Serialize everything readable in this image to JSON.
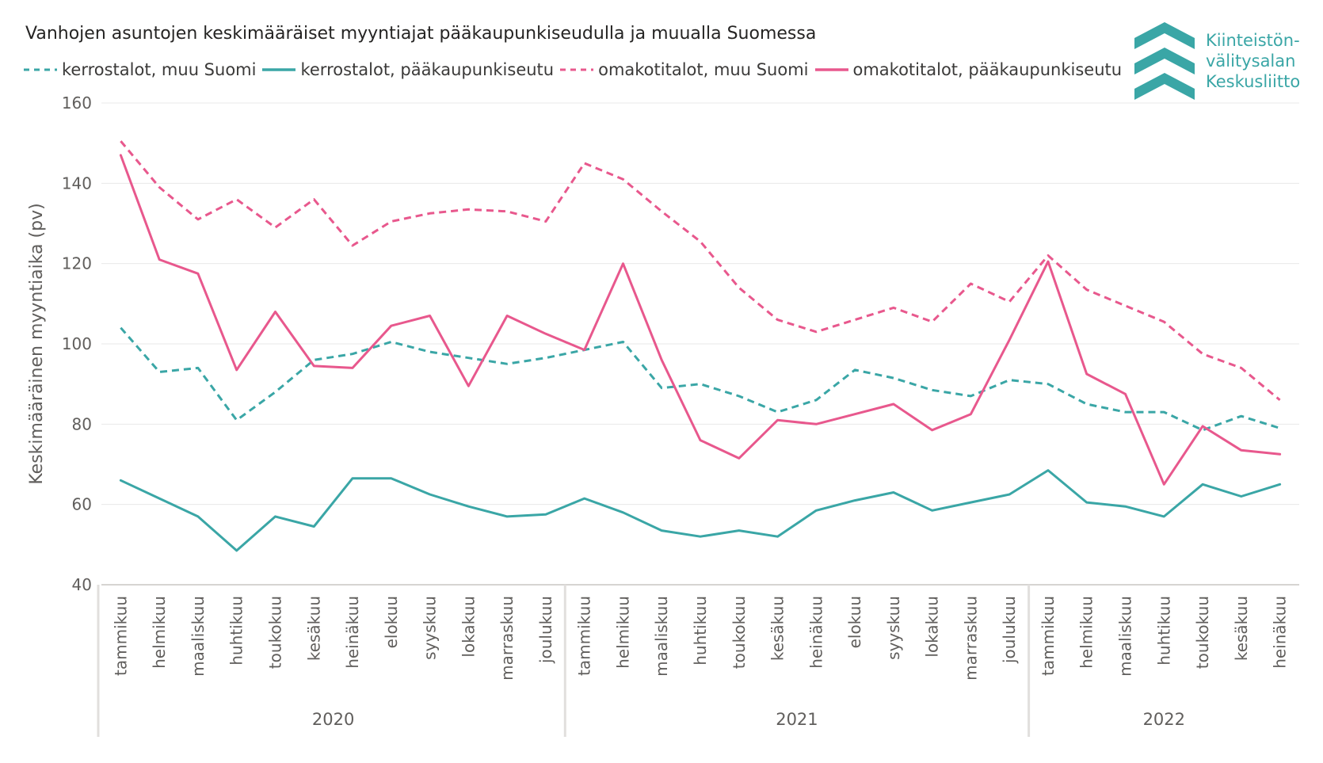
{
  "title": "Vanhojen asuntojen keskimääräiset myyntiajat pääkaupunkiseudulla ja muualla Suomessa",
  "logo": {
    "lines": [
      "Kiinteistön-",
      "välitysalan",
      "Keskusliitto"
    ],
    "color": "#3aa6a6"
  },
  "chart_data": {
    "type": "line",
    "ylabel": "Keskimääräinen myyntiaika (pv)",
    "xlabel": "",
    "ylim": [
      40,
      160
    ],
    "yticks": [
      40,
      60,
      80,
      100,
      120,
      140,
      160
    ],
    "grid": "horizontal",
    "legend_position": "top-left",
    "years": [
      {
        "label": "2020",
        "months": 12
      },
      {
        "label": "2021",
        "months": 12
      },
      {
        "label": "2022",
        "months": 7
      }
    ],
    "categories": [
      "tammikuu",
      "helmikuu",
      "maaliskuu",
      "huhtikuu",
      "toukokuu",
      "kesäkuu",
      "heinäkuu",
      "elokuu",
      "syyskuu",
      "lokakuu",
      "marraskuu",
      "joulukuu",
      "tammikuu",
      "helmikuu",
      "maaliskuu",
      "huhtikuu",
      "toukokuu",
      "kesäkuu",
      "heinäkuu",
      "elokuu",
      "syyskuu",
      "lokakuu",
      "marraskuu",
      "joulukuu",
      "tammikuu",
      "helmikuu",
      "maaliskuu",
      "huhtikuu",
      "toukokuu",
      "kesäkuu",
      "heinäkuu"
    ],
    "series": [
      {
        "name": "kerrostalot, muu Suomi",
        "color": "#3aa6a6",
        "dashed": true,
        "values": [
          104,
          93,
          94,
          81,
          88,
          96,
          97.5,
          100.5,
          98,
          96.5,
          95,
          96.5,
          98.5,
          100.5,
          89,
          90,
          87,
          83,
          86,
          93.5,
          91.5,
          88.5,
          87,
          91,
          90,
          85,
          83,
          83,
          78.5,
          82,
          79
        ]
      },
      {
        "name": "kerrostalot, pääkaupunkiseutu",
        "color": "#3aa6a6",
        "dashed": false,
        "values": [
          66,
          61.5,
          57,
          48.5,
          57,
          54.5,
          66.5,
          66.5,
          62.5,
          59.5,
          57,
          57.5,
          61.5,
          58,
          53.5,
          52,
          53.5,
          52,
          58.5,
          61,
          63,
          58.5,
          60.5,
          62.5,
          68.5,
          60.5,
          59.5,
          57,
          65,
          62,
          65
        ]
      },
      {
        "name": "omakotitalot, muu Suomi",
        "color": "#e8588d",
        "dashed": true,
        "values": [
          150.5,
          139,
          131,
          136,
          129,
          136,
          124.5,
          130.5,
          132.5,
          133.5,
          133,
          130.5,
          145,
          141,
          133,
          125.5,
          114,
          106,
          103,
          106,
          109,
          105.5,
          115,
          110.5,
          122,
          113.5,
          109.5,
          105.5,
          97.5,
          94,
          86
        ]
      },
      {
        "name": "omakotitalot, pääkaupunkiseutu",
        "color": "#e8588d",
        "dashed": false,
        "values": [
          147,
          121,
          117.5,
          93.5,
          108,
          94.5,
          94,
          104.5,
          107,
          89.5,
          107,
          102.5,
          98.5,
          120,
          96,
          76,
          71.5,
          81,
          80,
          82.5,
          85,
          78.5,
          82.5,
          101,
          120.5,
          92.5,
          87.5,
          65,
          79.5,
          73.5,
          72.5
        ]
      }
    ]
  }
}
